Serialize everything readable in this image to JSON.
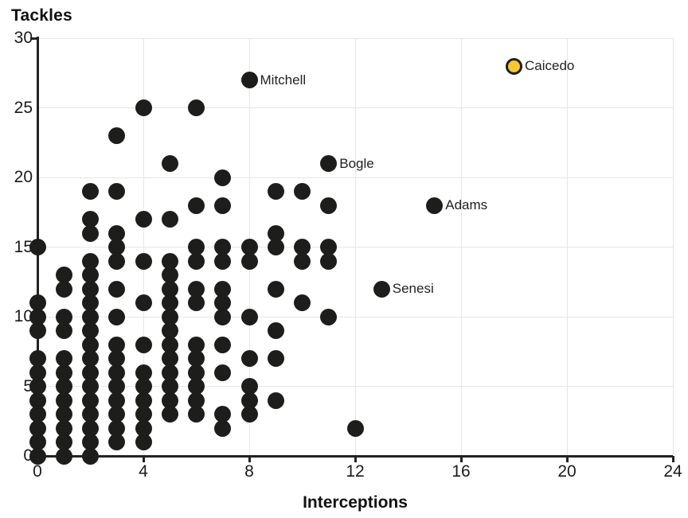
{
  "chart_data": {
    "type": "scatter",
    "y_title": "Tackles",
    "xlabel": "Interceptions",
    "xlim": [
      0,
      24
    ],
    "ylim": [
      0,
      30
    ],
    "x_ticks": [
      0,
      4,
      8,
      12,
      16,
      20,
      24
    ],
    "y_ticks": [
      0,
      5,
      10,
      15,
      20,
      25,
      30
    ],
    "grid": true,
    "legend": "none",
    "colors": {
      "dot": "#1d1d1b",
      "highlight_fill": "#f9c72f",
      "axis": "#222222",
      "grid": "#e6e6e6",
      "label_text": "#222222"
    },
    "points": [
      [
        0,
        0
      ],
      [
        0,
        1
      ],
      [
        0,
        2
      ],
      [
        0,
        3
      ],
      [
        0,
        4
      ],
      [
        0,
        5
      ],
      [
        0,
        6
      ],
      [
        0,
        7
      ],
      [
        0,
        9
      ],
      [
        0,
        10
      ],
      [
        0,
        11
      ],
      [
        0,
        15
      ],
      [
        1,
        0
      ],
      [
        1,
        1
      ],
      [
        1,
        2
      ],
      [
        1,
        3
      ],
      [
        1,
        4
      ],
      [
        1,
        5
      ],
      [
        1,
        6
      ],
      [
        1,
        7
      ],
      [
        1,
        9
      ],
      [
        1,
        10
      ],
      [
        1,
        12
      ],
      [
        1,
        13
      ],
      [
        2,
        0
      ],
      [
        2,
        1
      ],
      [
        2,
        2
      ],
      [
        2,
        3
      ],
      [
        2,
        4
      ],
      [
        2,
        5
      ],
      [
        2,
        6
      ],
      [
        2,
        7
      ],
      [
        2,
        8
      ],
      [
        2,
        9
      ],
      [
        2,
        10
      ],
      [
        2,
        11
      ],
      [
        2,
        12
      ],
      [
        2,
        13
      ],
      [
        2,
        14
      ],
      [
        2,
        16
      ],
      [
        2,
        17
      ],
      [
        2,
        19
      ],
      [
        3,
        1
      ],
      [
        3,
        2
      ],
      [
        3,
        3
      ],
      [
        3,
        4
      ],
      [
        3,
        5
      ],
      [
        3,
        6
      ],
      [
        3,
        7
      ],
      [
        3,
        8
      ],
      [
        3,
        10
      ],
      [
        3,
        12
      ],
      [
        3,
        14
      ],
      [
        3,
        15
      ],
      [
        3,
        16
      ],
      [
        3,
        19
      ],
      [
        3,
        23
      ],
      [
        4,
        1
      ],
      [
        4,
        2
      ],
      [
        4,
        3
      ],
      [
        4,
        4
      ],
      [
        4,
        5
      ],
      [
        4,
        6
      ],
      [
        4,
        8
      ],
      [
        4,
        11
      ],
      [
        4,
        14
      ],
      [
        4,
        17
      ],
      [
        4,
        25
      ],
      [
        5,
        3
      ],
      [
        5,
        4
      ],
      [
        5,
        5
      ],
      [
        5,
        6
      ],
      [
        5,
        7
      ],
      [
        5,
        8
      ],
      [
        5,
        9
      ],
      [
        5,
        10
      ],
      [
        5,
        11
      ],
      [
        5,
        12
      ],
      [
        5,
        13
      ],
      [
        5,
        14
      ],
      [
        5,
        17
      ],
      [
        5,
        21
      ],
      [
        6,
        3
      ],
      [
        6,
        4
      ],
      [
        6,
        5
      ],
      [
        6,
        6
      ],
      [
        6,
        7
      ],
      [
        6,
        8
      ],
      [
        6,
        11
      ],
      [
        6,
        12
      ],
      [
        6,
        14
      ],
      [
        6,
        15
      ],
      [
        6,
        18
      ],
      [
        6,
        25
      ],
      [
        7,
        2
      ],
      [
        7,
        3
      ],
      [
        7,
        6
      ],
      [
        7,
        8
      ],
      [
        7,
        10
      ],
      [
        7,
        11
      ],
      [
        7,
        12
      ],
      [
        7,
        14
      ],
      [
        7,
        15
      ],
      [
        7,
        18
      ],
      [
        7,
        20
      ],
      [
        8,
        3
      ],
      [
        8,
        4
      ],
      [
        8,
        5
      ],
      [
        8,
        7
      ],
      [
        8,
        10
      ],
      [
        8,
        14
      ],
      [
        8,
        15
      ],
      [
        9,
        4
      ],
      [
        9,
        7
      ],
      [
        9,
        9
      ],
      [
        9,
        12
      ],
      [
        9,
        15
      ],
      [
        9,
        16
      ],
      [
        9,
        19
      ],
      [
        10,
        11
      ],
      [
        10,
        14
      ],
      [
        10,
        15
      ],
      [
        10,
        19
      ],
      [
        11,
        10
      ],
      [
        11,
        14
      ],
      [
        11,
        15
      ],
      [
        11,
        18
      ],
      [
        12,
        2
      ]
    ],
    "labeled_points": [
      {
        "label": "Mitchell",
        "x": 8,
        "y": 27,
        "highlight": false
      },
      {
        "label": "Bogle",
        "x": 11,
        "y": 21,
        "highlight": false
      },
      {
        "label": "Adams",
        "x": 15,
        "y": 18,
        "highlight": false
      },
      {
        "label": "Senesi",
        "x": 13,
        "y": 12,
        "highlight": false
      },
      {
        "label": "Caicedo",
        "x": 18,
        "y": 28,
        "highlight": true
      }
    ]
  }
}
